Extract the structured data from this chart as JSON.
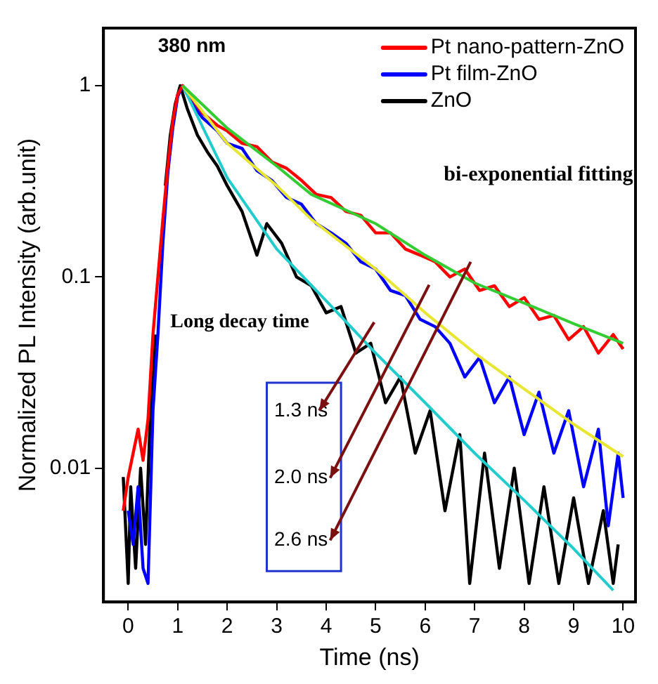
{
  "chart_data": {
    "type": "line",
    "xlabel": "Time (ns)",
    "ylabel": "Normalized PL Intensity (arb.unit)",
    "xlim": [
      -0.5,
      10.25
    ],
    "xticks": [
      0,
      1,
      2,
      3,
      4,
      5,
      6,
      7,
      8,
      9,
      10
    ],
    "ylim": [
      0.002,
      2
    ],
    "yticks": [
      0.01,
      0.1,
      1
    ],
    "log": "y",
    "grid": false,
    "legend": "top right",
    "marker": "none",
    "line_style": "solid",
    "annotations": [
      "380 nm",
      "bi-exponential fitting",
      "Long decay time",
      "1.3 ns",
      "2.0 ns",
      "2.6 ns"
    ],
    "series": [
      {
        "name": "Pt nano-pattern-ZnO",
        "color": "#ff0000",
        "x": [
          -0.1,
          0,
          0.1,
          0.2,
          0.3,
          0.4,
          0.5,
          0.6,
          0.7,
          0.8,
          0.9,
          1.0,
          1.1,
          1.3,
          1.5,
          1.8,
          2.0,
          2.3,
          2.6,
          2.9,
          3.2,
          3.5,
          3.8,
          4.1,
          4.4,
          4.7,
          5.0,
          5.3,
          5.6,
          5.9,
          6.2,
          6.5,
          6.8,
          7.1,
          7.4,
          7.7,
          8.0,
          8.3,
          8.6,
          8.9,
          9.2,
          9.5,
          9.8,
          10.0
        ],
        "values": [
          0.006,
          0.009,
          0.012,
          0.016,
          0.011,
          0.018,
          0.05,
          0.1,
          0.2,
          0.38,
          0.65,
          0.9,
          1,
          0.85,
          0.72,
          0.62,
          0.58,
          0.5,
          0.48,
          0.4,
          0.37,
          0.32,
          0.27,
          0.26,
          0.22,
          0.21,
          0.17,
          0.17,
          0.14,
          0.13,
          0.12,
          0.1,
          0.11,
          0.085,
          0.09,
          0.07,
          0.078,
          0.06,
          0.063,
          0.047,
          0.055,
          0.04,
          0.05,
          0.042
        ]
      },
      {
        "name": "Pt film-ZnO",
        "color": "#0000ff",
        "x": [
          0,
          0.1,
          0.2,
          0.3,
          0.4,
          0.5,
          0.6,
          0.7,
          0.8,
          0.9,
          1.0,
          1.1,
          1.3,
          1.5,
          1.8,
          2.0,
          2.3,
          2.6,
          2.9,
          3.2,
          3.5,
          3.8,
          4.1,
          4.4,
          4.7,
          5.0,
          5.3,
          5.6,
          5.9,
          6.2,
          6.5,
          6.8,
          7.1,
          7.4,
          7.7,
          8.0,
          8.3,
          8.6,
          8.9,
          9.2,
          9.5,
          9.7,
          9.9,
          10.0
        ],
        "values": [
          0.006,
          0.004,
          0.008,
          0.003,
          0.0025,
          0.02,
          0.05,
          0.15,
          0.35,
          0.6,
          0.88,
          1,
          0.8,
          0.68,
          0.58,
          0.5,
          0.47,
          0.36,
          0.32,
          0.26,
          0.24,
          0.19,
          0.17,
          0.15,
          0.12,
          0.11,
          0.085,
          0.08,
          0.06,
          0.055,
          0.045,
          0.03,
          0.038,
          0.022,
          0.03,
          0.015,
          0.025,
          0.012,
          0.02,
          0.008,
          0.016,
          0.005,
          0.012,
          0.007
        ]
      },
      {
        "name": "ZnO",
        "color": "#000000",
        "x": [
          -0.1,
          0,
          0.05,
          0.15,
          0.25,
          0.35,
          0.45,
          0.55,
          0.65,
          0.75,
          0.85,
          0.95,
          1.05,
          1.2,
          1.4,
          1.6,
          1.8,
          2.0,
          2.3,
          2.6,
          2.8,
          3.1,
          3.4,
          3.7,
          4.0,
          4.3,
          4.6,
          4.9,
          5.2,
          5.5,
          5.8,
          6.1,
          6.4,
          6.7,
          6.9,
          7.2,
          7.5,
          7.8,
          8.1,
          8.4,
          8.7,
          9.0,
          9.3,
          9.6,
          9.8,
          9.9
        ],
        "values": [
          0.009,
          0.0025,
          0.008,
          0.003,
          0.01,
          0.004,
          0.02,
          0.05,
          null,
          0.3,
          0.55,
          0.8,
          1,
          0.75,
          0.55,
          0.45,
          0.38,
          0.3,
          0.22,
          0.13,
          0.19,
          0.15,
          0.1,
          0.09,
          0.065,
          0.07,
          0.04,
          0.045,
          0.022,
          0.03,
          0.012,
          0.02,
          0.006,
          0.015,
          0.0025,
          0.012,
          0.003,
          0.01,
          0.0025,
          0.008,
          0.0025,
          0.007,
          0.0025,
          0.006,
          0.0025,
          0.004
        ]
      },
      {
        "type": "line",
        "color": "#33cc33",
        "x": [
          1.1,
          2,
          3,
          3.7,
          5,
          6,
          7,
          8,
          9,
          10
        ],
        "values": [
          1,
          0.6,
          0.38,
          0.27,
          0.19,
          0.13,
          0.093,
          0.073,
          0.057,
          0.045
        ]
      },
      {
        "type": "line",
        "color": "#e6e633",
        "x": [
          1.1,
          2,
          3,
          3.7,
          5,
          6,
          7,
          8,
          9,
          10
        ],
        "values": [
          1,
          0.5,
          0.3,
          0.2,
          0.11,
          0.065,
          0.04,
          0.026,
          0.017,
          0.0115
        ]
      },
      {
        "type": "line",
        "color": "#22cccc",
        "x": [
          1.1,
          2,
          3,
          4,
          5,
          6,
          7,
          8,
          9,
          9.8
        ],
        "values": [
          1,
          0.33,
          0.14,
          0.075,
          0.04,
          0.022,
          0.012,
          0.0068,
          0.0038,
          0.0023
        ]
      }
    ]
  }
}
